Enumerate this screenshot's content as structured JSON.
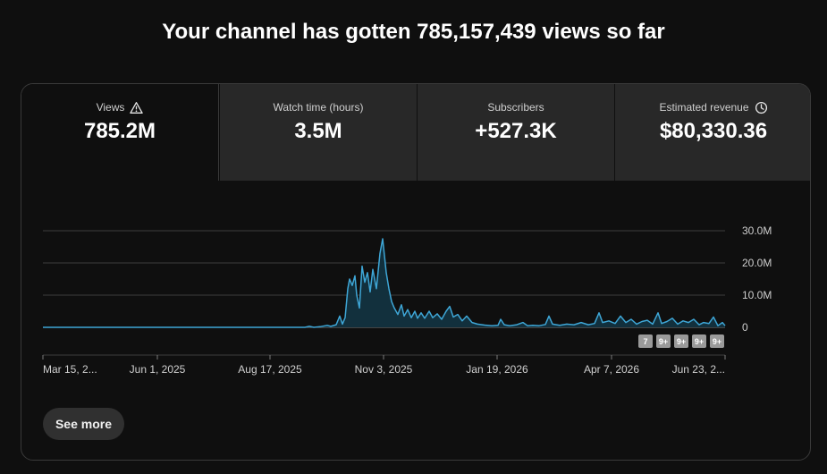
{
  "headline": "Your channel has gotten 785,157,439 views so far",
  "tabs": [
    {
      "label": "Views",
      "value": "785.2M",
      "icon": "warning-icon"
    },
    {
      "label": "Watch time (hours)",
      "value": "3.5M",
      "icon": ""
    },
    {
      "label": "Subscribers",
      "value": "+527.3K",
      "icon": ""
    },
    {
      "label": "Estimated revenue",
      "value": "$80,330.36",
      "icon": "clock-icon"
    }
  ],
  "colors": {
    "line": "#3ea6d6",
    "fill": "#12303d",
    "selected_tab": "#0f0f0f",
    "tab": "#282828"
  },
  "chart_data": {
    "type": "area",
    "title": "",
    "xlabel": "",
    "ylabel": "",
    "y_ticks": [
      "30.0M",
      "20.0M",
      "10.0M",
      "0"
    ],
    "ylim": [
      0,
      30000000
    ],
    "x_ticks": [
      "Mar 15, 2...",
      "Jun 1, 2025",
      "Aug 17, 2025",
      "Nov 3, 2025",
      "Jan 19, 2026",
      "Apr 7, 2026",
      "Jun 23, 2..."
    ],
    "series": [
      {
        "values": [
          [
            0,
            0
          ],
          [
            293,
            0
          ],
          [
            298,
            300000
          ],
          [
            303,
            0
          ],
          [
            310,
            200000
          ],
          [
            318,
            600000
          ],
          [
            322,
            300000
          ],
          [
            328,
            800000
          ],
          [
            332,
            3500000
          ],
          [
            335,
            1000000
          ],
          [
            338,
            3000000
          ],
          [
            341,
            12000000
          ],
          [
            343,
            15000000
          ],
          [
            346,
            13000000
          ],
          [
            349,
            16000000
          ],
          [
            351,
            10000000
          ],
          [
            354,
            6000000
          ],
          [
            357,
            19000000
          ],
          [
            360,
            14000000
          ],
          [
            363,
            17000000
          ],
          [
            366,
            11000000
          ],
          [
            369,
            18000000
          ],
          [
            373,
            12000000
          ],
          [
            377,
            23000000
          ],
          [
            380,
            27500000
          ],
          [
            384,
            17000000
          ],
          [
            387,
            12000000
          ],
          [
            390,
            8000000
          ],
          [
            393,
            6000000
          ],
          [
            397,
            4000000
          ],
          [
            401,
            7000000
          ],
          [
            404,
            3500000
          ],
          [
            408,
            5500000
          ],
          [
            412,
            3000000
          ],
          [
            416,
            5000000
          ],
          [
            419,
            2800000
          ],
          [
            423,
            4500000
          ],
          [
            427,
            2800000
          ],
          [
            432,
            5000000
          ],
          [
            436,
            3000000
          ],
          [
            441,
            4200000
          ],
          [
            446,
            2500000
          ],
          [
            451,
            5000000
          ],
          [
            455,
            6500000
          ],
          [
            459,
            3200000
          ],
          [
            464,
            4000000
          ],
          [
            469,
            2000000
          ],
          [
            474,
            3500000
          ],
          [
            480,
            1500000
          ],
          [
            486,
            1000000
          ],
          [
            494,
            700000
          ],
          [
            502,
            500000
          ],
          [
            509,
            600000
          ],
          [
            512,
            2500000
          ],
          [
            516,
            800000
          ],
          [
            522,
            500000
          ],
          [
            530,
            800000
          ],
          [
            537,
            1500000
          ],
          [
            542,
            500000
          ],
          [
            548,
            600000
          ],
          [
            555,
            500000
          ],
          [
            562,
            900000
          ],
          [
            566,
            3500000
          ],
          [
            570,
            1000000
          ],
          [
            578,
            600000
          ],
          [
            586,
            1000000
          ],
          [
            594,
            800000
          ],
          [
            602,
            1500000
          ],
          [
            610,
            800000
          ],
          [
            617,
            1200000
          ],
          [
            622,
            4500000
          ],
          [
            626,
            1500000
          ],
          [
            633,
            2000000
          ],
          [
            640,
            1200000
          ],
          [
            646,
            3500000
          ],
          [
            652,
            1500000
          ],
          [
            658,
            2500000
          ],
          [
            664,
            1000000
          ],
          [
            670,
            1800000
          ],
          [
            676,
            2200000
          ],
          [
            682,
            1000000
          ],
          [
            688,
            4500000
          ],
          [
            692,
            1200000
          ],
          [
            698,
            1800000
          ],
          [
            704,
            2800000
          ],
          [
            710,
            1000000
          ],
          [
            716,
            2000000
          ],
          [
            722,
            1500000
          ],
          [
            728,
            2500000
          ],
          [
            734,
            800000
          ],
          [
            739,
            1500000
          ],
          [
            745,
            1200000
          ],
          [
            750,
            3200000
          ],
          [
            755,
            500000
          ],
          [
            760,
            1500000
          ],
          [
            763,
            500000
          ]
        ]
      }
    ],
    "badges": [
      "7",
      "9+",
      "9+",
      "9+",
      "9+"
    ]
  },
  "see_more_label": "See more"
}
